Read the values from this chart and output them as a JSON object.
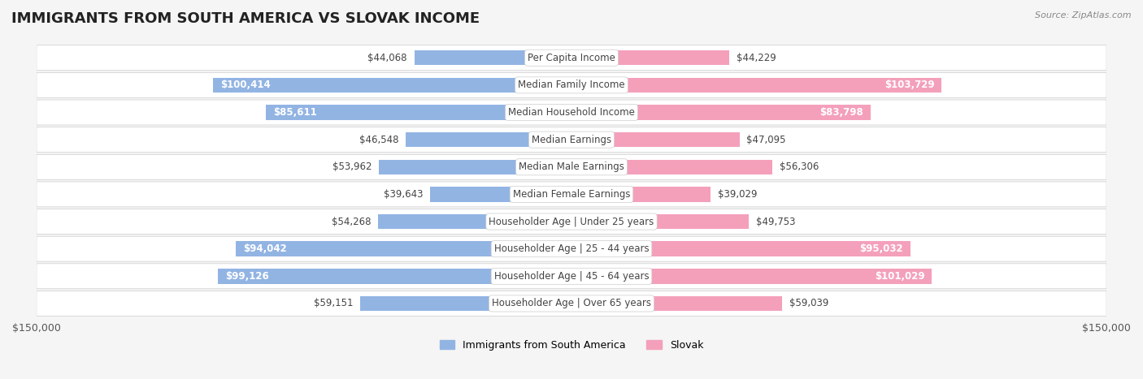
{
  "title": "IMMIGRANTS FROM SOUTH AMERICA VS SLOVAK INCOME",
  "source": "Source: ZipAtlas.com",
  "categories": [
    "Per Capita Income",
    "Median Family Income",
    "Median Household Income",
    "Median Earnings",
    "Median Male Earnings",
    "Median Female Earnings",
    "Householder Age | Under 25 years",
    "Householder Age | 25 - 44 years",
    "Householder Age | 45 - 64 years",
    "Householder Age | Over 65 years"
  ],
  "left_values": [
    44068,
    100414,
    85611,
    46548,
    53962,
    39643,
    54268,
    94042,
    99126,
    59151
  ],
  "right_values": [
    44229,
    103729,
    83798,
    47095,
    56306,
    39029,
    49753,
    95032,
    101029,
    59039
  ],
  "left_labels": [
    "$44,068",
    "$100,414",
    "$85,611",
    "$46,548",
    "$53,962",
    "$39,643",
    "$54,268",
    "$94,042",
    "$99,126",
    "$59,151"
  ],
  "right_labels": [
    "$44,229",
    "$103,729",
    "$83,798",
    "$47,095",
    "$56,306",
    "$39,029",
    "$49,753",
    "$95,032",
    "$101,029",
    "$59,039"
  ],
  "left_color": "#92b4e3",
  "right_color": "#f4a0bb",
  "left_color_dark": "#6494d4",
  "right_color_dark": "#f07fa0",
  "label_left": "Immigrants from South America",
  "label_right": "Slovak",
  "max_val": 150000,
  "bg_color": "#f5f5f5",
  "row_bg": "#ffffff",
  "title_fontsize": 13,
  "axis_fontsize": 9,
  "bar_label_fontsize": 8.5,
  "category_fontsize": 8.5
}
